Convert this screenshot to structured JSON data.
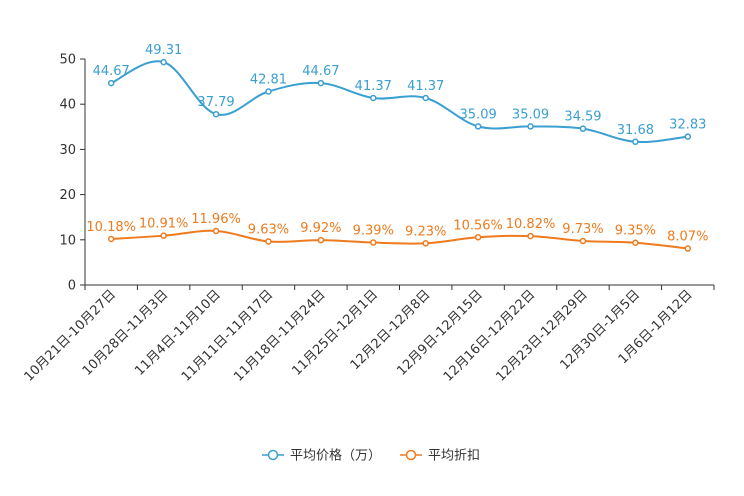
{
  "chart_data": {
    "type": "line",
    "categories": [
      "10月21日-10月27日",
      "10月28日-11月3日",
      "11月4日-11月10日",
      "11月11日-11月17日",
      "11月18日-11月24日",
      "11月25日-12月1日",
      "12月2日-12月8日",
      "12月9日-12月15日",
      "12月16日-12月22日",
      "12月23日-12月29日",
      "12月30日-1月5日",
      "1月6日-1月12日"
    ],
    "yticks": [
      "0",
      "10",
      "20",
      "30",
      "40",
      "50"
    ],
    "ylim": [
      0,
      50
    ],
    "series": [
      {
        "name": "平均价格（万）",
        "color": "#3a9fd1",
        "values": [
          44.67,
          49.31,
          37.79,
          42.81,
          44.67,
          41.37,
          41.37,
          35.09,
          35.09,
          34.59,
          31.68,
          32.83
        ],
        "labels": [
          "44.67",
          "49.31",
          "37.79",
          "42.81",
          "44.67",
          "41.37",
          "41.37",
          "35.09",
          "35.09",
          "34.59",
          "31.68",
          "32.83"
        ]
      },
      {
        "name": "平均折扣",
        "color": "#ee7b1e",
        "values": [
          10.18,
          10.91,
          11.96,
          9.63,
          9.92,
          9.39,
          9.23,
          10.56,
          10.82,
          9.73,
          9.35,
          8.07
        ],
        "labels": [
          "10.18%",
          "10.91%",
          "11.96%",
          "9.63%",
          "9.92%",
          "9.39%",
          "9.23%",
          "10.56%",
          "10.82%",
          "9.73%",
          "9.35%",
          "8.07%"
        ]
      }
    ],
    "legend_position": "bottom-center"
  }
}
